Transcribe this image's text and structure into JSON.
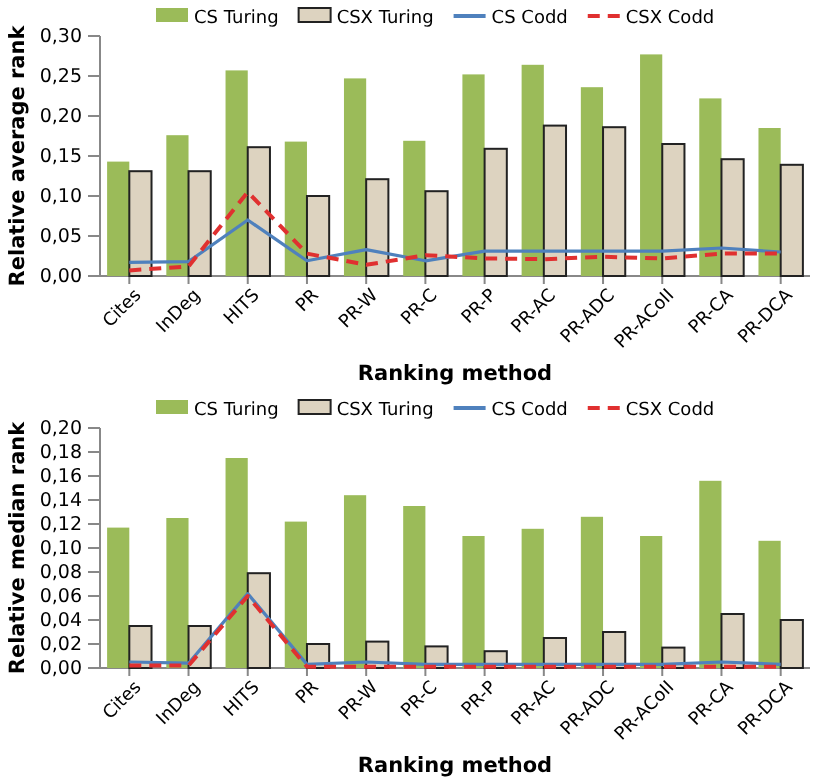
{
  "chart_data": [
    {
      "type": "bar",
      "xlabel": "Ranking method",
      "ylabel": "Relative average rank",
      "categories": [
        "Cites",
        "InDeg",
        "HITS",
        "PR",
        "PR-W",
        "PR-C",
        "PR-P",
        "PR-AC",
        "PR-ADC",
        "PR-ACoII",
        "PR-CA",
        "PR-DCA"
      ],
      "series": [
        {
          "name": "CS Turing",
          "color": "#9bbb59",
          "values": [
            0.143,
            0.176,
            0.257,
            0.168,
            0.247,
            0.169,
            0.252,
            0.264,
            0.236,
            0.277,
            0.222,
            0.185
          ]
        },
        {
          "name": "CSX Turing",
          "color": "#ddd3c0",
          "values": [
            0.131,
            0.131,
            0.161,
            0.1,
            0.121,
            0.106,
            0.159,
            0.188,
            0.186,
            0.165,
            0.146,
            0.139
          ]
        },
        {
          "name": "CS Codd",
          "type": "line",
          "color": "#4f81bd",
          "line_style": "solid",
          "values": [
            0.017,
            0.018,
            0.07,
            0.019,
            0.033,
            0.019,
            0.031,
            0.031,
            0.031,
            0.031,
            0.035,
            0.03
          ]
        },
        {
          "name": "CSX Codd",
          "type": "line",
          "color": "#e03030",
          "line_style": "dashed",
          "values": [
            0.007,
            0.012,
            0.105,
            0.028,
            0.014,
            0.026,
            0.022,
            0.021,
            0.024,
            0.022,
            0.028,
            0.028
          ]
        }
      ],
      "ylim": [
        0,
        0.3
      ],
      "yticks": [
        {
          "value": 0,
          "label": "0,00"
        },
        {
          "value": 0.05,
          "label": "0,05"
        },
        {
          "value": 0.1,
          "label": "0,10"
        },
        {
          "value": 0.15,
          "label": "0,15"
        },
        {
          "value": 0.2,
          "label": "0,20"
        },
        {
          "value": 0.25,
          "label": "0,25"
        },
        {
          "value": 0.3,
          "label": "0,30"
        }
      ],
      "legend": "top",
      "grid": false,
      "marker": "none"
    },
    {
      "type": "bar",
      "xlabel": "Ranking method",
      "ylabel": "Relative median rank",
      "categories": [
        "Cites",
        "InDeg",
        "HITS",
        "PR",
        "PR-W",
        "PR-C",
        "PR-P",
        "PR-AC",
        "PR-ADC",
        "PR-ACoII",
        "PR-CA",
        "PR-DCA"
      ],
      "series": [
        {
          "name": "CS Turing",
          "color": "#9bbb59",
          "values": [
            0.117,
            0.125,
            0.175,
            0.122,
            0.144,
            0.135,
            0.11,
            0.116,
            0.126,
            0.11,
            0.156,
            0.106
          ]
        },
        {
          "name": "CSX Turing",
          "color": "#ddd3c0",
          "values": [
            0.035,
            0.035,
            0.079,
            0.02,
            0.022,
            0.018,
            0.014,
            0.025,
            0.03,
            0.017,
            0.045,
            0.04
          ]
        },
        {
          "name": "CS Codd",
          "type": "line",
          "color": "#4f81bd",
          "line_style": "solid",
          "values": [
            0.005,
            0.004,
            0.062,
            0.003,
            0.005,
            0.003,
            0.003,
            0.003,
            0.003,
            0.003,
            0.005,
            0.003
          ]
        },
        {
          "name": "CSX Codd",
          "type": "line",
          "color": "#e03030",
          "line_style": "dashed",
          "values": [
            0.002,
            0.002,
            0.06,
            0.001,
            0.001,
            0.001,
            0.001,
            0.001,
            0.001,
            0.001,
            0.001,
            0.001
          ]
        }
      ],
      "ylim": [
        0,
        0.2
      ],
      "yticks": [
        {
          "value": 0,
          "label": "0,00"
        },
        {
          "value": 0.02,
          "label": "0,02"
        },
        {
          "value": 0.04,
          "label": "0,04"
        },
        {
          "value": 0.06,
          "label": "0,06"
        },
        {
          "value": 0.08,
          "label": "0,08"
        },
        {
          "value": 0.1,
          "label": "0,10"
        },
        {
          "value": 0.12,
          "label": "0,12"
        },
        {
          "value": 0.14,
          "label": "0,14"
        },
        {
          "value": 0.16,
          "label": "0,16"
        },
        {
          "value": 0.18,
          "label": "0,18"
        },
        {
          "value": 0.2,
          "label": "0,20"
        }
      ],
      "legend": "top",
      "grid": false,
      "marker": "none"
    }
  ]
}
